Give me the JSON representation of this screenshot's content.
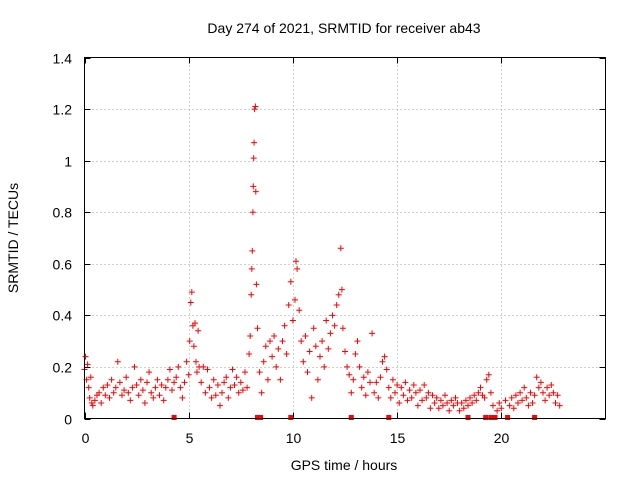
{
  "chart_data": {
    "type": "scatter",
    "title": "Day 274 of 2021, SRMTID for receiver ab43",
    "xlabel": "GPS time / hours",
    "ylabel": "SRMTID / TECUs",
    "xlim": [
      0,
      25
    ],
    "ylim": [
      0,
      1.4
    ],
    "grid": true,
    "marker": "+",
    "color": "#ff0000",
    "x_ticks": [
      0,
      5,
      10,
      15,
      20
    ],
    "x_tick_labels": [
      "0",
      "5",
      "10",
      "15",
      "20"
    ],
    "y_ticks": [
      0,
      0.2,
      0.4,
      0.6,
      0.8,
      1.0,
      1.2,
      1.4
    ],
    "y_tick_labels": [
      "0",
      "0.2",
      "0.4",
      "0.6",
      "0.8",
      "1",
      "1.2",
      "1.4"
    ],
    "series": [
      {
        "name": "SRMTID",
        "points": [
          [
            0.0,
            0.19
          ],
          [
            0.05,
            0.24
          ],
          [
            0.1,
            0.15
          ],
          [
            0.15,
            0.21
          ],
          [
            0.2,
            0.12
          ],
          [
            0.25,
            0.08
          ],
          [
            0.3,
            0.16
          ],
          [
            0.35,
            0.06
          ],
          [
            0.4,
            0.05
          ],
          [
            0.5,
            0.07
          ],
          [
            0.6,
            0.09
          ],
          [
            0.7,
            0.1
          ],
          [
            0.8,
            0.06
          ],
          [
            0.9,
            0.12
          ],
          [
            1.0,
            0.09
          ],
          [
            1.1,
            0.13
          ],
          [
            1.2,
            0.08
          ],
          [
            1.3,
            0.15
          ],
          [
            1.4,
            0.1
          ],
          [
            1.5,
            0.12
          ],
          [
            1.6,
            0.22
          ],
          [
            1.7,
            0.14
          ],
          [
            1.8,
            0.09
          ],
          [
            1.9,
            0.11
          ],
          [
            2.0,
            0.16
          ],
          [
            2.1,
            0.1
          ],
          [
            2.2,
            0.07
          ],
          [
            2.3,
            0.12
          ],
          [
            2.4,
            0.2
          ],
          [
            2.5,
            0.13
          ],
          [
            2.6,
            0.09
          ],
          [
            2.7,
            0.15
          ],
          [
            2.8,
            0.11
          ],
          [
            2.9,
            0.06
          ],
          [
            3.0,
            0.14
          ],
          [
            3.1,
            0.18
          ],
          [
            3.2,
            0.1
          ],
          [
            3.3,
            0.08
          ],
          [
            3.4,
            0.12
          ],
          [
            3.5,
            0.15
          ],
          [
            3.6,
            0.09
          ],
          [
            3.7,
            0.13
          ],
          [
            3.8,
            0.07
          ],
          [
            3.9,
            0.12
          ],
          [
            4.0,
            0.15
          ],
          [
            4.1,
            0.19
          ],
          [
            4.2,
            0.11
          ],
          [
            4.3,
            0.14
          ],
          [
            4.4,
            0.16
          ],
          [
            4.5,
            0.2
          ],
          [
            4.6,
            0.12
          ],
          [
            4.7,
            0.08
          ],
          [
            4.8,
            0.14
          ],
          [
            4.9,
            0.22
          ],
          [
            5.0,
            0.17
          ],
          [
            5.05,
            0.3
          ],
          [
            5.1,
            0.45
          ],
          [
            5.15,
            0.49
          ],
          [
            5.2,
            0.36
          ],
          [
            5.25,
            0.28
          ],
          [
            5.3,
            0.37
          ],
          [
            5.35,
            0.22
          ],
          [
            5.4,
            0.18
          ],
          [
            5.45,
            0.34
          ],
          [
            5.5,
            0.2
          ],
          [
            5.6,
            0.14
          ],
          [
            5.7,
            0.2
          ],
          [
            5.8,
            0.1
          ],
          [
            5.9,
            0.19
          ],
          [
            6.0,
            0.12
          ],
          [
            6.1,
            0.08
          ],
          [
            6.2,
            0.15
          ],
          [
            6.3,
            0.09
          ],
          [
            6.4,
            0.13
          ],
          [
            6.5,
            0.05
          ],
          [
            6.6,
            0.1
          ],
          [
            6.7,
            0.14
          ],
          [
            6.8,
            0.16
          ],
          [
            6.9,
            0.08
          ],
          [
            7.0,
            0.12
          ],
          [
            7.1,
            0.19
          ],
          [
            7.2,
            0.13
          ],
          [
            7.3,
            0.16
          ],
          [
            7.4,
            0.1
          ],
          [
            7.5,
            0.14
          ],
          [
            7.6,
            0.11
          ],
          [
            7.7,
            0.18
          ],
          [
            7.8,
            0.12
          ],
          [
            7.9,
            0.25
          ],
          [
            7.95,
            0.32
          ],
          [
            8.0,
            0.48
          ],
          [
            8.03,
            0.58
          ],
          [
            8.05,
            0.65
          ],
          [
            8.08,
            0.8
          ],
          [
            8.1,
            0.9
          ],
          [
            8.12,
            1.01
          ],
          [
            8.14,
            1.07
          ],
          [
            8.16,
            1.2
          ],
          [
            8.2,
            1.21
          ],
          [
            8.22,
            0.88
          ],
          [
            8.25,
            0.52
          ],
          [
            8.3,
            0.35
          ],
          [
            8.4,
            0.18
          ],
          [
            8.5,
            0.1
          ],
          [
            8.6,
            0.22
          ],
          [
            8.7,
            0.28
          ],
          [
            8.8,
            0.15
          ],
          [
            8.9,
            0.3
          ],
          [
            9.0,
            0.24
          ],
          [
            9.1,
            0.32
          ],
          [
            9.2,
            0.2
          ],
          [
            9.3,
            0.27
          ],
          [
            9.4,
            0.15
          ],
          [
            9.5,
            0.3
          ],
          [
            9.6,
            0.36
          ],
          [
            9.7,
            0.25
          ],
          [
            9.8,
            0.44
          ],
          [
            9.9,
            0.53
          ],
          [
            10.0,
            0.38
          ],
          [
            10.1,
            0.46
          ],
          [
            10.15,
            0.61
          ],
          [
            10.2,
            0.58
          ],
          [
            10.3,
            0.42
          ],
          [
            10.4,
            0.3
          ],
          [
            10.5,
            0.22
          ],
          [
            10.6,
            0.32
          ],
          [
            10.7,
            0.18
          ],
          [
            10.8,
            0.26
          ],
          [
            10.9,
            0.08
          ],
          [
            11.0,
            0.35
          ],
          [
            11.1,
            0.28
          ],
          [
            11.2,
            0.15
          ],
          [
            11.3,
            0.24
          ],
          [
            11.4,
            0.3
          ],
          [
            11.5,
            0.2
          ],
          [
            11.6,
            0.38
          ],
          [
            11.7,
            0.27
          ],
          [
            11.8,
            0.33
          ],
          [
            11.9,
            0.4
          ],
          [
            12.0,
            0.36
          ],
          [
            12.1,
            0.44
          ],
          [
            12.2,
            0.48
          ],
          [
            12.3,
            0.66
          ],
          [
            12.35,
            0.5
          ],
          [
            12.4,
            0.35
          ],
          [
            12.5,
            0.26
          ],
          [
            12.6,
            0.2
          ],
          [
            12.7,
            0.17
          ],
          [
            12.8,
            0.1
          ],
          [
            12.9,
            0.15
          ],
          [
            13.0,
            0.25
          ],
          [
            13.1,
            0.3
          ],
          [
            13.2,
            0.2
          ],
          [
            13.3,
            0.12
          ],
          [
            13.4,
            0.16
          ],
          [
            13.5,
            0.09
          ],
          [
            13.6,
            0.18
          ],
          [
            13.7,
            0.14
          ],
          [
            13.8,
            0.33
          ],
          [
            13.9,
            0.1
          ],
          [
            14.0,
            0.14
          ],
          [
            14.1,
            0.08
          ],
          [
            14.2,
            0.16
          ],
          [
            14.3,
            0.22
          ],
          [
            14.4,
            0.24
          ],
          [
            14.5,
            0.19
          ],
          [
            14.6,
            0.12
          ],
          [
            14.7,
            0.08
          ],
          [
            14.8,
            0.15
          ],
          [
            14.9,
            0.1
          ],
          [
            15.0,
            0.13
          ],
          [
            15.1,
            0.06
          ],
          [
            15.2,
            0.12
          ],
          [
            15.3,
            0.09
          ],
          [
            15.4,
            0.14
          ],
          [
            15.5,
            0.07
          ],
          [
            15.6,
            0.11
          ],
          [
            15.7,
            0.08
          ],
          [
            15.8,
            0.13
          ],
          [
            15.9,
            0.1
          ],
          [
            16.0,
            0.05
          ],
          [
            16.1,
            0.11
          ],
          [
            16.2,
            0.07
          ],
          [
            16.3,
            0.13
          ],
          [
            16.4,
            0.08
          ],
          [
            16.5,
            0.1
          ],
          [
            16.6,
            0.04
          ],
          [
            16.7,
            0.09
          ],
          [
            16.8,
            0.06
          ],
          [
            16.9,
            0.08
          ],
          [
            17.0,
            0.04
          ],
          [
            17.1,
            0.07
          ],
          [
            17.2,
            0.05
          ],
          [
            17.3,
            0.09
          ],
          [
            17.4,
            0.06
          ],
          [
            17.5,
            0.03
          ],
          [
            17.6,
            0.07
          ],
          [
            17.7,
            0.05
          ],
          [
            17.8,
            0.08
          ],
          [
            17.9,
            0.06
          ],
          [
            18.0,
            0.03
          ],
          [
            18.1,
            0.06
          ],
          [
            18.2,
            0.04
          ],
          [
            18.3,
            0.07
          ],
          [
            18.4,
            0.05
          ],
          [
            18.5,
            0.08
          ],
          [
            18.6,
            0.06
          ],
          [
            18.7,
            0.09
          ],
          [
            18.8,
            0.07
          ],
          [
            18.9,
            0.1
          ],
          [
            19.0,
            0.12
          ],
          [
            19.1,
            0.09
          ],
          [
            19.2,
            0.08
          ],
          [
            19.3,
            0.15
          ],
          [
            19.4,
            0.17
          ],
          [
            19.5,
            0.1
          ],
          [
            19.6,
            0.05
          ],
          [
            19.8,
            0.03
          ],
          [
            19.9,
            0.06
          ],
          [
            20.0,
            0.04
          ],
          [
            20.2,
            0.07
          ],
          [
            20.4,
            0.05
          ],
          [
            20.5,
            0.08
          ],
          [
            20.6,
            0.04
          ],
          [
            20.7,
            0.09
          ],
          [
            20.8,
            0.06
          ],
          [
            20.9,
            0.1
          ],
          [
            21.0,
            0.07
          ],
          [
            21.1,
            0.12
          ],
          [
            21.2,
            0.08
          ],
          [
            21.3,
            0.05
          ],
          [
            21.4,
            0.1
          ],
          [
            21.5,
            0.06
          ],
          [
            21.6,
            0.09
          ],
          [
            21.7,
            0.16
          ],
          [
            21.8,
            0.12
          ],
          [
            21.9,
            0.14
          ],
          [
            22.0,
            0.1
          ],
          [
            22.1,
            0.07
          ],
          [
            22.2,
            0.12
          ],
          [
            22.3,
            0.09
          ],
          [
            22.4,
            0.13
          ],
          [
            22.5,
            0.1
          ],
          [
            22.6,
            0.06
          ],
          [
            22.7,
            0.09
          ],
          [
            22.8,
            0.05
          ]
        ]
      }
    ],
    "gap_markers_x": [
      4.3,
      8.3,
      8.45,
      9.9,
      12.8,
      14.6,
      18.4,
      19.25,
      19.5,
      19.7,
      20.3,
      21.6
    ]
  }
}
